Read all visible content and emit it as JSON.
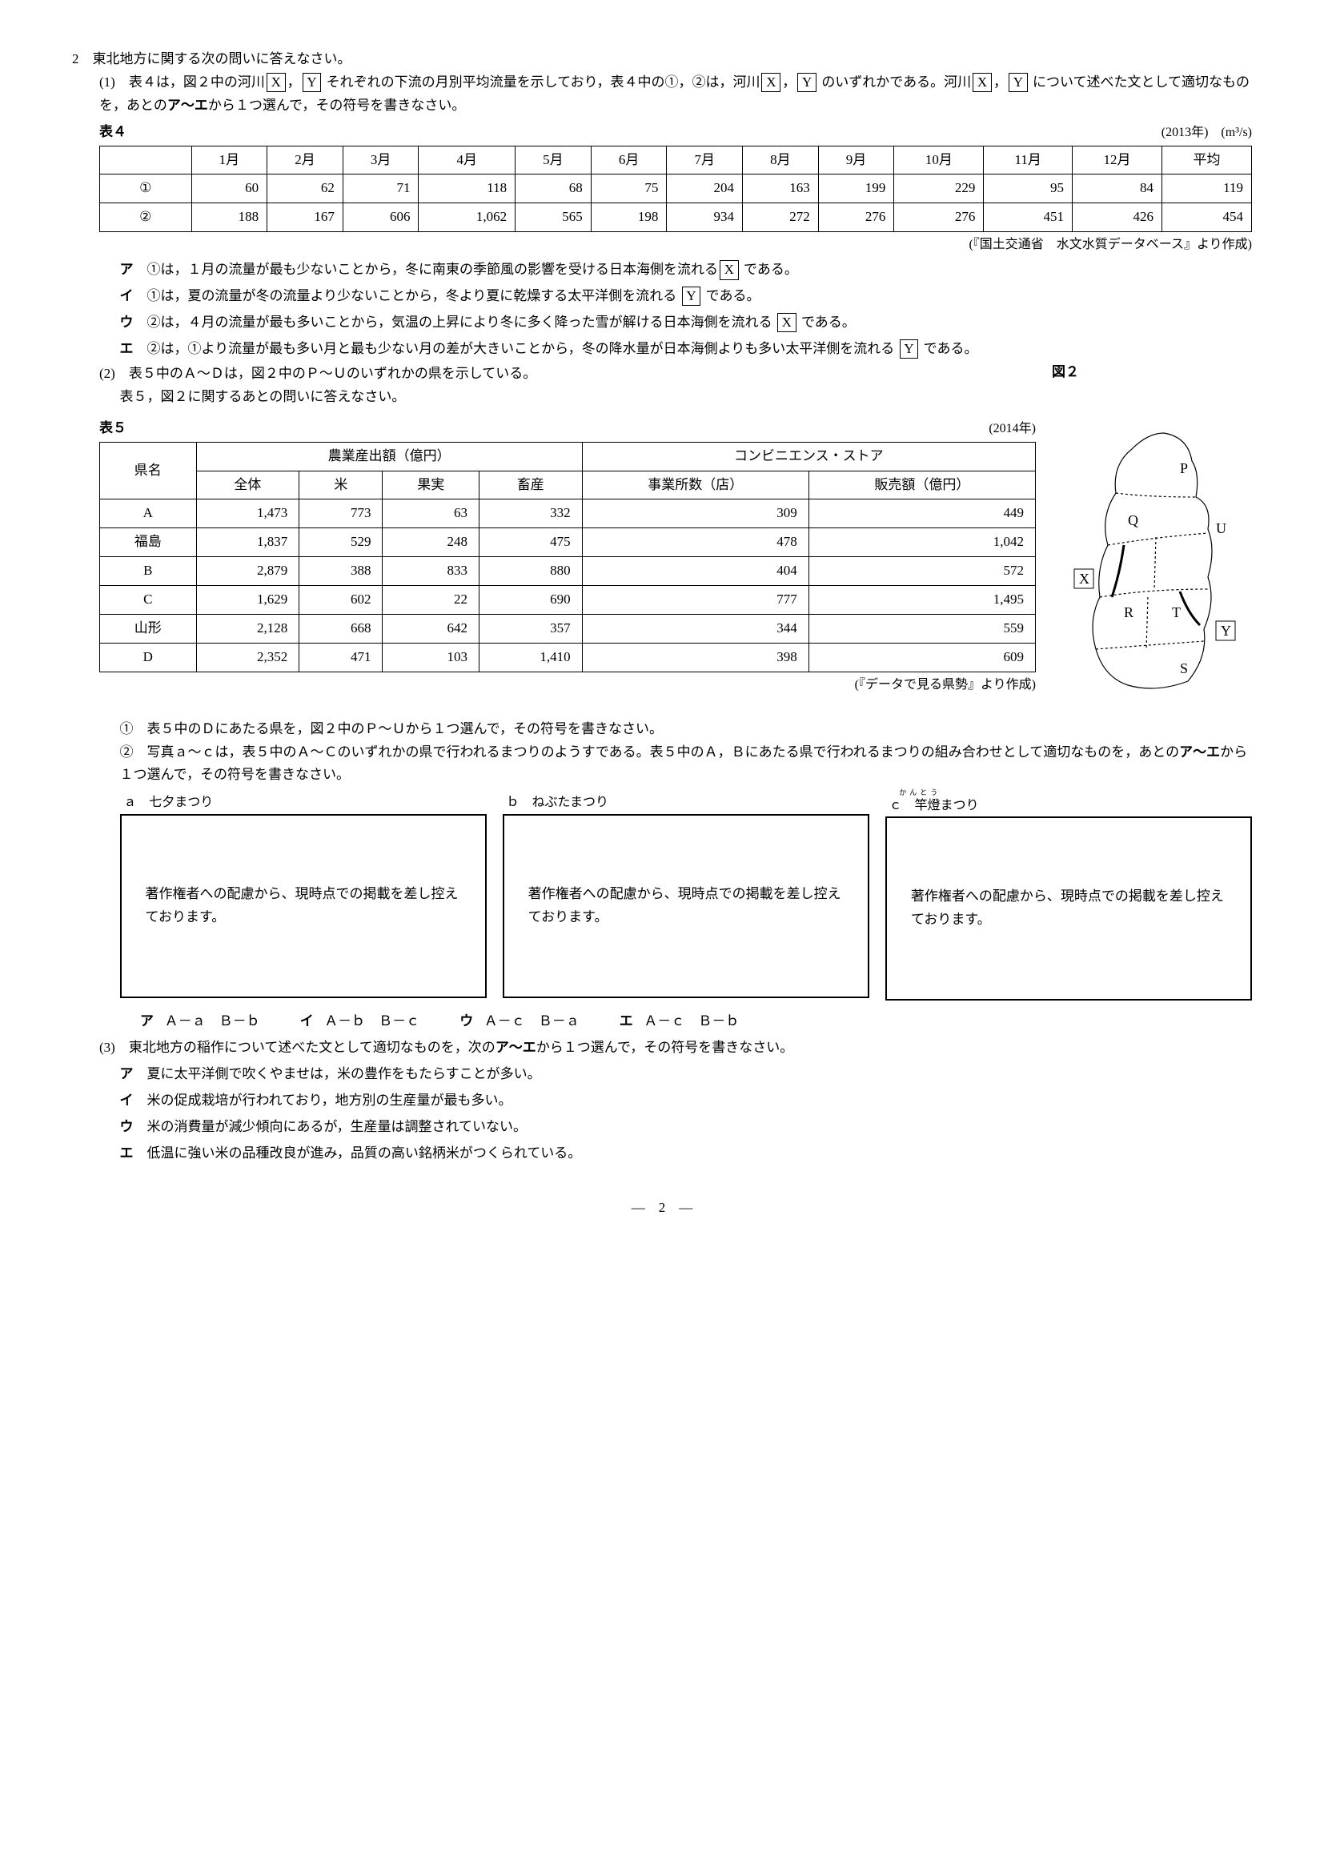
{
  "q2": {
    "header": "2　東北地方に関する次の問いに答えなさい。",
    "sub1": {
      "lead1": "(1)　表４は，図２中の河川",
      "lead2": "，",
      "lead3": " それぞれの下流の月別平均流量を示しており，表４中の①，②は，河川",
      "lead4": "，",
      "lead5": " のいずれかである。河川",
      "lead6": "，",
      "lead7": " について述べた文として適切なものを，あとの",
      "bold_range": "ア～エ",
      "lead8": "から１つ選んで，その符号を書きなさい。",
      "X": "X",
      "Y": "Y",
      "table4_label": "表４",
      "table4_unit": "(2013年)　(m³/s)",
      "table4": {
        "headers": [
          "",
          "1月",
          "2月",
          "3月",
          "4月",
          "5月",
          "6月",
          "7月",
          "8月",
          "9月",
          "10月",
          "11月",
          "12月",
          "平均"
        ],
        "rows": [
          {
            "label": "①",
            "vals": [
              "60",
              "62",
              "71",
              "118",
              "68",
              "75",
              "204",
              "163",
              "199",
              "229",
              "95",
              "84",
              "119"
            ]
          },
          {
            "label": "②",
            "vals": [
              "188",
              "167",
              "606",
              "1,062",
              "565",
              "198",
              "934",
              "272",
              "276",
              "276",
              "451",
              "426",
              "454"
            ]
          }
        ]
      },
      "src4": "(『国土交通省　水文水質データベース』より作成)",
      "options": {
        "a": {
          "label": "ア",
          "t1": "①は，１月の流量が最も少ないことから，冬に南東の季節風の影響を受ける日本海側を流れる",
          "box": "X",
          "t2": " である。"
        },
        "i": {
          "label": "イ",
          "t1": "①は，夏の流量が冬の流量より少ないことから，冬より夏に乾燥する太平洋側を流れる ",
          "box": "Y",
          "t2": " である。"
        },
        "u": {
          "label": "ウ",
          "t1": "②は，４月の流量が最も多いことから，気温の上昇により冬に多く降った雪が解ける日本海側を流れる ",
          "box": "X",
          "t2": " である。"
        },
        "e": {
          "label": "エ",
          "t1": "②は，①より流量が最も多い月と最も少ない月の差が大きいことから，冬の降水量が日本海側よりも多い太平洋側を流れる ",
          "box": "Y",
          "t2": " である。"
        }
      }
    },
    "sub2": {
      "lead1": "(2)　表５中のＡ～Ｄは，図２中のＰ～Ｕのいずれかの県を示している。",
      "lead2": "表５，図２に関するあとの問いに答えなさい。",
      "fig2_label": "図２",
      "table5_label": "表５",
      "table5_year": "(2014年)",
      "table5": {
        "h_pref": "県名",
        "h_agri": "農業産出額（億円）",
        "h_total": "全体",
        "h_rice": "米",
        "h_fruit": "果実",
        "h_live": "畜産",
        "h_conv": "コンビニエンス・ストア",
        "h_store": "事業所数（店）",
        "h_sale": "販売額（億円）",
        "rows": [
          {
            "pref": "A",
            "vals": [
              "1,473",
              "773",
              "63",
              "332",
              "309",
              "449"
            ]
          },
          {
            "pref": "福島",
            "vals": [
              "1,837",
              "529",
              "248",
              "475",
              "478",
              "1,042"
            ]
          },
          {
            "pref": "B",
            "vals": [
              "2,879",
              "388",
              "833",
              "880",
              "404",
              "572"
            ]
          },
          {
            "pref": "C",
            "vals": [
              "1,629",
              "602",
              "22",
              "690",
              "777",
              "1,495"
            ]
          },
          {
            "pref": "山形",
            "vals": [
              "2,128",
              "668",
              "642",
              "357",
              "344",
              "559"
            ]
          },
          {
            "pref": "D",
            "vals": [
              "2,352",
              "471",
              "103",
              "1,410",
              "398",
              "609"
            ]
          }
        ]
      },
      "src5": "(『データで見る県勢』より作成)",
      "map_labels": {
        "P": "P",
        "Q": "Q",
        "U": "U",
        "X": "X",
        "R": "R",
        "T": "T",
        "Y": "Y",
        "S": "S"
      },
      "q1": "①　表５中のＤにあたる県を，図２中のＰ～Ｕから１つ選んで，その符号を書きなさい。",
      "q2_1": "②　写真ａ～ｃは，表５中のＡ～Ｃのいずれかの県で行われるまつりのようすである。表５中のＡ，Ｂにあたる県で行われるまつりの組み合わせとして適切なものを，あとの",
      "q2_bold": "ア～エ",
      "q2_2": "から１つ選んで，その符号を書きなさい。",
      "photos": {
        "a": {
          "cap": "ａ　七夕まつり",
          "ruby": ""
        },
        "b": {
          "cap": "ｂ　ねぶたまつり",
          "ruby": ""
        },
        "c": {
          "cap": "ｃ　竿燈まつり",
          "ruby": "かんとう"
        }
      },
      "copyright": "著作権者への配慮から、現時点での掲載を差し控えております。",
      "combos": {
        "a": {
          "l": "ア",
          "t": "Ａ－ａ　Ｂ－ｂ"
        },
        "i": {
          "l": "イ",
          "t": "Ａ－ｂ　Ｂ－ｃ"
        },
        "u": {
          "l": "ウ",
          "t": "Ａ－ｃ　Ｂ－ａ"
        },
        "e": {
          "l": "エ",
          "t": "Ａ－ｃ　Ｂ－ｂ"
        }
      }
    },
    "sub3": {
      "lead1": "(3)　東北地方の稲作について述べた文として適切なものを，次の",
      "bold": "ア～エ",
      "lead2": "から１つ選んで，その符号を書きなさい。",
      "options": {
        "a": {
          "l": "ア",
          "t": "夏に太平洋側で吹くやませは，米の豊作をもたらすことが多い。"
        },
        "i": {
          "l": "イ",
          "t": "米の促成栽培が行われており，地方別の生産量が最も多い。"
        },
        "u": {
          "l": "ウ",
          "t": "米の消費量が減少傾向にあるが，生産量は調整されていない。"
        },
        "e": {
          "l": "エ",
          "t": "低温に強い米の品種改良が進み，品質の高い銘柄米がつくられている。"
        }
      }
    }
  },
  "page": "—　2　—"
}
